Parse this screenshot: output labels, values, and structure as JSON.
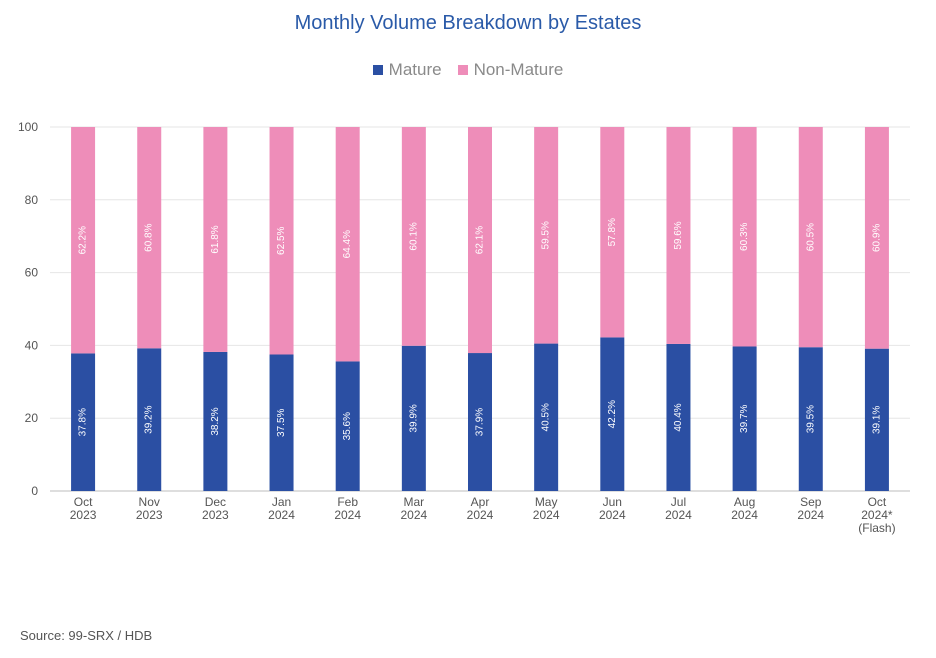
{
  "chart_data": {
    "type": "bar",
    "stacked": true,
    "title": "Monthly Volume Breakdown by Estates",
    "categories": [
      [
        "Oct",
        "2023"
      ],
      [
        "Nov",
        "2023"
      ],
      [
        "Dec",
        "2023"
      ],
      [
        "Jan",
        "2024"
      ],
      [
        "Feb",
        "2024"
      ],
      [
        "Mar",
        "2024"
      ],
      [
        "Apr",
        "2024"
      ],
      [
        "May",
        "2024"
      ],
      [
        "Jun",
        "2024"
      ],
      [
        "Jul",
        "2024"
      ],
      [
        "Aug",
        "2024"
      ],
      [
        "Sep",
        "2024"
      ],
      [
        "Oct",
        "2024*",
        "(Flash)"
      ]
    ],
    "series": [
      {
        "name": "Mature",
        "color": "#2b4fa3",
        "values": [
          37.8,
          39.2,
          38.2,
          37.5,
          35.6,
          39.9,
          37.9,
          40.5,
          42.2,
          40.4,
          39.7,
          39.5,
          39.1
        ]
      },
      {
        "name": "Non-Mature",
        "color": "#ee8db9",
        "values": [
          62.2,
          60.8,
          61.8,
          62.5,
          64.4,
          60.1,
          62.1,
          59.5,
          57.8,
          59.6,
          60.3,
          60.5,
          60.9
        ]
      }
    ],
    "ylim": [
      0,
      100
    ],
    "yticks": [
      0,
      20,
      40,
      60,
      80,
      100
    ],
    "value_suffix": "%",
    "legend_position": "top-center",
    "grid": true
  },
  "source": "Source: 99-SRX / HDB"
}
